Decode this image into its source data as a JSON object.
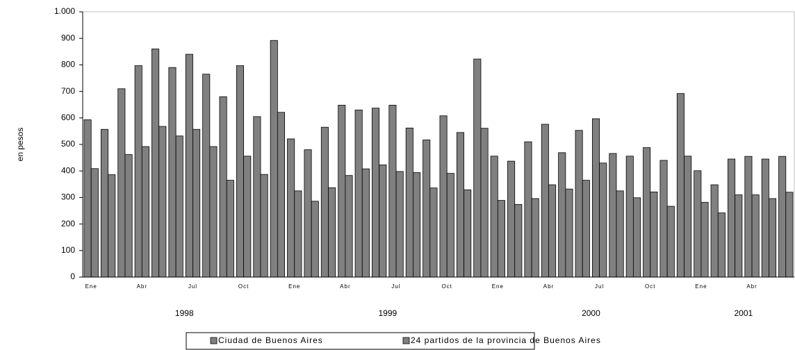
{
  "chart_data": {
    "type": "bar",
    "y_label": "en pesos",
    "categories": [
      "Ene",
      null,
      null,
      "Abr",
      null,
      null,
      "Jul",
      null,
      null,
      "Oct",
      null,
      null,
      "Ene",
      null,
      null,
      "Abr",
      null,
      null,
      "Jul",
      null,
      null,
      "Oct",
      null,
      null,
      "Ene",
      null,
      null,
      "Abr",
      null,
      null,
      "Jul",
      null,
      null,
      "Oct",
      null,
      null,
      "Ene",
      null,
      null,
      "Abr",
      null,
      null
    ],
    "years": [
      "1998",
      "1999",
      "2000",
      "2001"
    ],
    "series": [
      {
        "name": "Ciudad de Buenos Aires",
        "color": "#808080",
        "values": [
          593,
          557,
          710,
          797,
          860,
          790,
          840,
          765,
          680,
          797,
          605,
          892,
          521,
          480,
          565,
          648,
          630,
          637,
          648,
          562,
          517,
          608,
          545,
          822,
          456,
          437,
          510,
          576,
          469,
          553,
          597,
          466,
          456,
          488,
          440,
          692,
          401,
          348,
          445,
          455,
          445,
          455
        ]
      },
      {
        "name": "24 partidos de la provincia de Buenos Aires",
        "color": "#808080",
        "values": [
          409,
          386,
          462,
          492,
          568,
          532,
          557,
          492,
          365,
          456,
          387,
          621,
          325,
          286,
          337,
          383,
          408,
          423,
          398,
          394,
          336,
          391,
          329,
          561,
          289,
          274,
          296,
          348,
          332,
          365,
          430,
          325,
          299,
          321,
          267,
          456,
          282,
          242,
          310,
          310,
          296,
          320
        ]
      }
    ],
    "ylim": [
      0,
      1000
    ],
    "yticks": [
      0,
      100,
      200,
      300,
      400,
      500,
      600,
      700,
      800,
      900,
      {
        "value": 1000,
        "label": "1.000"
      }
    ],
    "grid": false,
    "legend": "bottom"
  }
}
